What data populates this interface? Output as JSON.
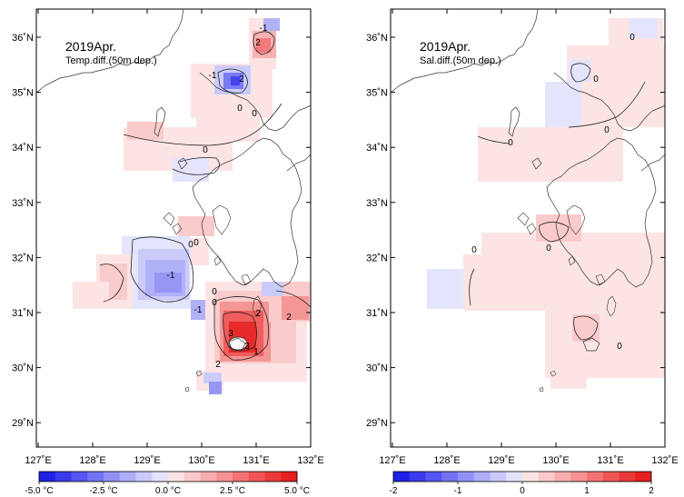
{
  "panels": [
    {
      "id": "temperature",
      "title": "2019Apr.",
      "subtitle": "Temp.diff.(50m dep.)",
      "contour_labels": [
        "-1",
        "2",
        "-1",
        "2",
        "0",
        "0",
        "0",
        "0",
        "-1",
        "0",
        "0",
        "-1",
        "0",
        "3",
        "2",
        "3",
        "2",
        "1",
        "2"
      ],
      "colorbar": {
        "tick_labels": [
          "-5.0 °C",
          "-2.5 °C",
          "0.0 °C",
          "2.5 °C",
          "5.0 °C"
        ],
        "colors": [
          "#1f1fe6",
          "#3a3aeb",
          "#5555ef",
          "#7373f2",
          "#9191f5",
          "#adadf8",
          "#c9c9fa",
          "#e3e3fc",
          "#fce3e3",
          "#fac9c9",
          "#f8adad",
          "#f59191",
          "#f27373",
          "#ef5555",
          "#eb3a3a",
          "#e61f1f"
        ]
      }
    },
    {
      "id": "salinity",
      "title": "2019Apr.",
      "subtitle": "Sal.diff.(50m dep.)",
      "contour_labels": [
        "0",
        "0",
        "0",
        "0",
        "0",
        "0",
        "0"
      ],
      "colorbar": {
        "tick_labels": [
          "-2",
          "-1",
          "0",
          "1",
          "2"
        ],
        "colors": [
          "#1f1fe6",
          "#3a3aeb",
          "#5555ef",
          "#7373f2",
          "#9191f5",
          "#adadf8",
          "#c9c9fa",
          "#e3e3fc",
          "#fce3e3",
          "#fac9c9",
          "#f8adad",
          "#f59191",
          "#f27373",
          "#ef5555",
          "#eb3a3a",
          "#e61f1f"
        ]
      }
    }
  ],
  "axes": {
    "lon_labels": [
      "127˚E",
      "128˚E",
      "129˚E",
      "130˚E",
      "131˚E",
      "132˚E"
    ],
    "lat_labels": [
      "36˚N",
      "35˚N",
      "34˚N",
      "33˚N",
      "32˚N",
      "31˚N",
      "30˚N",
      "29˚N"
    ]
  }
}
